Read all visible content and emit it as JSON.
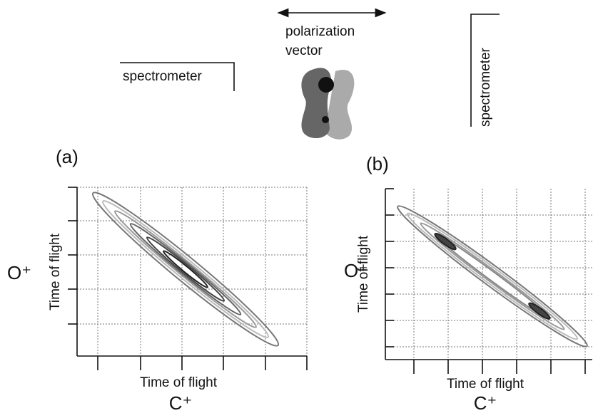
{
  "diagram": {
    "polarization": [
      "polarization",
      "vector"
    ],
    "spectrometer_left": "spectrometer",
    "spectrometer_right": "spectrometer",
    "panels": [
      {
        "label": "(a)",
        "x_label": "Time of flight",
        "x_ion": "C⁺",
        "y_label": "Time of flight",
        "y_ion": "O⁺"
      },
      {
        "label": "(b)",
        "x_label": "Time of flight",
        "x_ion": "C⁺",
        "y_label": "Time of flight",
        "y_ion": "O⁺"
      }
    ]
  }
}
